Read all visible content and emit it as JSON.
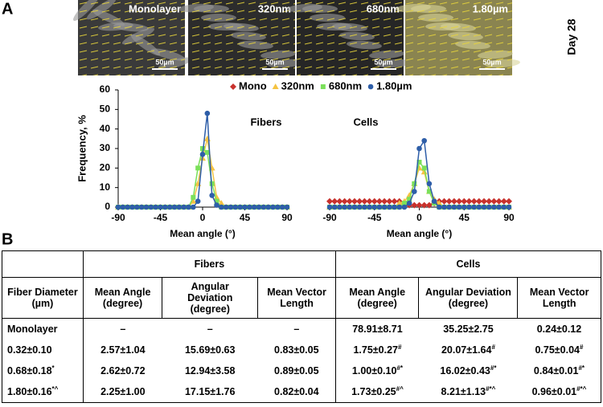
{
  "panel_a": {
    "label": "A",
    "day": "Day 28",
    "images": [
      {
        "label": "Monolayer",
        "scale": "50µm"
      },
      {
        "label": "320nm",
        "scale": "50µm"
      },
      {
        "label": "680nm",
        "scale": "50µm"
      },
      {
        "label": "1.80µm",
        "scale": "50µm"
      }
    ]
  },
  "chart_data": [
    {
      "type": "line",
      "title": "Fibers",
      "y_label": "Frequency, %",
      "x_label": "Mean angle (°)",
      "x": [
        -90,
        -85,
        -80,
        -75,
        -70,
        -65,
        -60,
        -55,
        -50,
        -45,
        -40,
        -35,
        -30,
        -25,
        -20,
        -15,
        -10,
        -5,
        0,
        5,
        10,
        15,
        20,
        25,
        30,
        35,
        40,
        45,
        50,
        55,
        60,
        65,
        70,
        75,
        80,
        85,
        90
      ],
      "xlim": [
        -90,
        90
      ],
      "xticks": [
        -90,
        -45,
        0,
        45,
        90
      ],
      "ylim": [
        0,
        60
      ],
      "yticks": [
        0,
        10,
        20,
        30,
        40,
        50,
        60
      ],
      "series": [
        {
          "name": "320nm",
          "color": "#f5c342",
          "marker": "triangle",
          "values": [
            0,
            0,
            0,
            0,
            0,
            0,
            0,
            0,
            0,
            0,
            0,
            0,
            0,
            0,
            0,
            0,
            3,
            12,
            25,
            35,
            20,
            5,
            2,
            0,
            0,
            0,
            0,
            0,
            0,
            0,
            0,
            0,
            0,
            0,
            0,
            0,
            0
          ]
        },
        {
          "name": "680nm",
          "color": "#7be05a",
          "marker": "square",
          "values": [
            0,
            0,
            0,
            0,
            0,
            0,
            0,
            0,
            0,
            0,
            0,
            0,
            0,
            0,
            0,
            0,
            5,
            20,
            30,
            28,
            12,
            3,
            0,
            0,
            0,
            0,
            0,
            0,
            0,
            0,
            0,
            0,
            0,
            0,
            0,
            0,
            0
          ]
        },
        {
          "name": "1.80µm",
          "color": "#2e5ea8",
          "marker": "circle",
          "values": [
            0,
            0,
            0,
            0,
            0,
            0,
            0,
            0,
            0,
            0,
            0,
            0,
            0,
            0,
            0,
            0,
            0,
            3,
            27,
            48,
            6,
            1,
            0,
            0,
            0,
            0,
            0,
            0,
            0,
            0,
            0,
            0,
            0,
            0,
            0,
            0,
            0
          ]
        }
      ]
    },
    {
      "type": "line",
      "title": "Cells",
      "x_label": "Mean angle (°)",
      "x": [
        -90,
        -85,
        -80,
        -75,
        -70,
        -65,
        -60,
        -55,
        -50,
        -45,
        -40,
        -35,
        -30,
        -25,
        -20,
        -15,
        -10,
        -5,
        0,
        5,
        10,
        15,
        20,
        25,
        30,
        35,
        40,
        45,
        50,
        55,
        60,
        65,
        70,
        75,
        80,
        85,
        90
      ],
      "xlim": [
        -90,
        90
      ],
      "xticks": [
        -90,
        -45,
        0,
        45,
        90
      ],
      "ylim": [
        0,
        60
      ],
      "series": [
        {
          "name": "Mono",
          "color": "#c8322d",
          "marker": "diamond",
          "values": [
            3,
            3,
            3,
            3,
            3,
            3,
            3,
            3,
            3,
            3,
            3,
            3,
            3,
            3,
            3,
            2,
            1,
            1,
            1,
            1,
            1,
            2,
            3,
            3,
            3,
            3,
            3,
            3,
            3,
            3,
            3,
            3,
            3,
            3,
            3,
            3,
            3
          ]
        },
        {
          "name": "320nm",
          "color": "#f5c342",
          "marker": "triangle",
          "values": [
            0,
            0,
            0,
            0,
            0,
            0,
            0,
            0,
            0,
            0,
            0,
            0,
            0,
            0,
            2,
            3,
            6,
            12,
            20,
            18,
            8,
            4,
            2,
            0,
            0,
            0,
            0,
            0,
            0,
            0,
            0,
            0,
            0,
            0,
            0,
            0,
            0
          ]
        },
        {
          "name": "680nm",
          "color": "#7be05a",
          "marker": "square",
          "values": [
            0,
            0,
            0,
            0,
            0,
            0,
            0,
            0,
            0,
            0,
            0,
            0,
            0,
            0,
            0,
            2,
            4,
            12,
            23,
            20,
            8,
            2,
            0,
            0,
            0,
            0,
            0,
            0,
            0,
            0,
            0,
            0,
            0,
            0,
            0,
            0,
            0
          ]
        },
        {
          "name": "1.80µm",
          "color": "#2e5ea8",
          "marker": "circle",
          "values": [
            0,
            0,
            0,
            0,
            0,
            0,
            0,
            0,
            0,
            0,
            0,
            0,
            0,
            0,
            0,
            0,
            2,
            8,
            30,
            34,
            12,
            3,
            0,
            0,
            0,
            0,
            0,
            0,
            0,
            0,
            0,
            0,
            0,
            0,
            0,
            0,
            0
          ]
        }
      ]
    }
  ],
  "panel_b": {
    "label": "B",
    "groups": [
      "Fibers",
      "Cells"
    ],
    "headers": [
      "Fiber Diameter (µm)",
      "Mean Angle (degree)",
      "Angular Deviation (degree)",
      "Mean Vector Length",
      "Mean Angle (degree)",
      "Angular Deviation (degree)",
      "Mean  Vector Length"
    ],
    "rows": [
      [
        {
          "text": "Monolayer"
        },
        {
          "text": "–"
        },
        {
          "text": "–"
        },
        {
          "text": "–"
        },
        {
          "text": "78.91±8.71"
        },
        {
          "text": "35.25±2.75"
        },
        {
          "text": "0.24±0.12"
        }
      ],
      [
        {
          "text": "0.32±0.10"
        },
        {
          "text": "2.57±1.04"
        },
        {
          "text": "15.69±0.63"
        },
        {
          "text": "0.83±0.05"
        },
        {
          "text": "1.75±0.27",
          "sup": "#"
        },
        {
          "text": "20.07±1.64",
          "sup": "#"
        },
        {
          "text": "0.75±0.04",
          "sup": "#"
        }
      ],
      [
        {
          "text": "0.68±0.18",
          "sup": "*"
        },
        {
          "text": "2.62±0.72"
        },
        {
          "text": "12.94±3.58"
        },
        {
          "text": "0.89±0.05"
        },
        {
          "text": "1.00±0.10",
          "sup": "#*"
        },
        {
          "text": "16.02±0.43",
          "sup": "#*"
        },
        {
          "text": "0.84±0.01",
          "sup": "#*"
        }
      ],
      [
        {
          "text": "1.80±0.16",
          "sup": "*^"
        },
        {
          "text": "2.25±1.00"
        },
        {
          "text": "17.15±1.76"
        },
        {
          "text": "0.82±0.04"
        },
        {
          "text": "1.73±0.25",
          "sup": "#^"
        },
        {
          "text": "8.21±1.13",
          "sup": "#*^"
        },
        {
          "text": "0.96±0.01",
          "sup": "#*^"
        }
      ]
    ]
  }
}
